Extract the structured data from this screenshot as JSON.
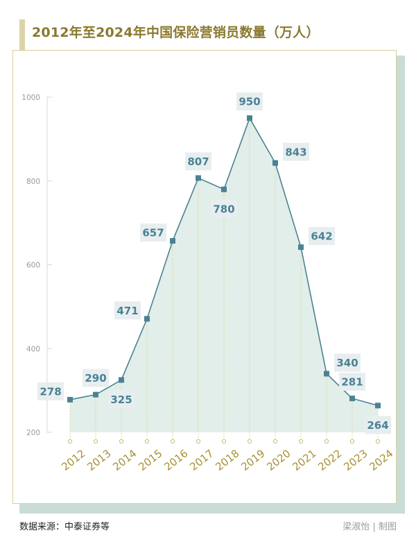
{
  "title": "2012年至2024年中国保险营销员数量（万人）",
  "source": "数据来源：中泰证券等",
  "credit": "梁淑怡 | 制图",
  "colors": {
    "line": "#4a8294",
    "area": "#e2eee9",
    "label_bg": "#e8eef0",
    "label_text": "#4a8294",
    "year_text": "#a8912e",
    "grid": "#d8d8d8",
    "guide": "#d6d7a0"
  },
  "chart_data": {
    "type": "area",
    "title": "2012年至2024年中国保险营销员数量（万人）",
    "xlabel": "",
    "ylabel": "",
    "ylim": [
      200,
      1000
    ],
    "yticks": [
      "200",
      "400",
      "600",
      "800",
      "1000"
    ],
    "categories": [
      "2012",
      "2013",
      "2014",
      "2015",
      "2016",
      "2017",
      "2018",
      "2019",
      "2020",
      "2021",
      "2022",
      "2023",
      "2024"
    ],
    "values": [
      278,
      290,
      325,
      471,
      657,
      807,
      780,
      950,
      843,
      642,
      340,
      281,
      264
    ],
    "labels": [
      "278",
      "290",
      "325",
      "471",
      "657",
      "807",
      "780",
      "950",
      "843",
      "642",
      "340",
      "281",
      "264"
    ],
    "label_positions": [
      "left",
      "above",
      "below",
      "left",
      "left",
      "above",
      "below",
      "above",
      "right",
      "right",
      "right",
      "above",
      "below"
    ]
  }
}
